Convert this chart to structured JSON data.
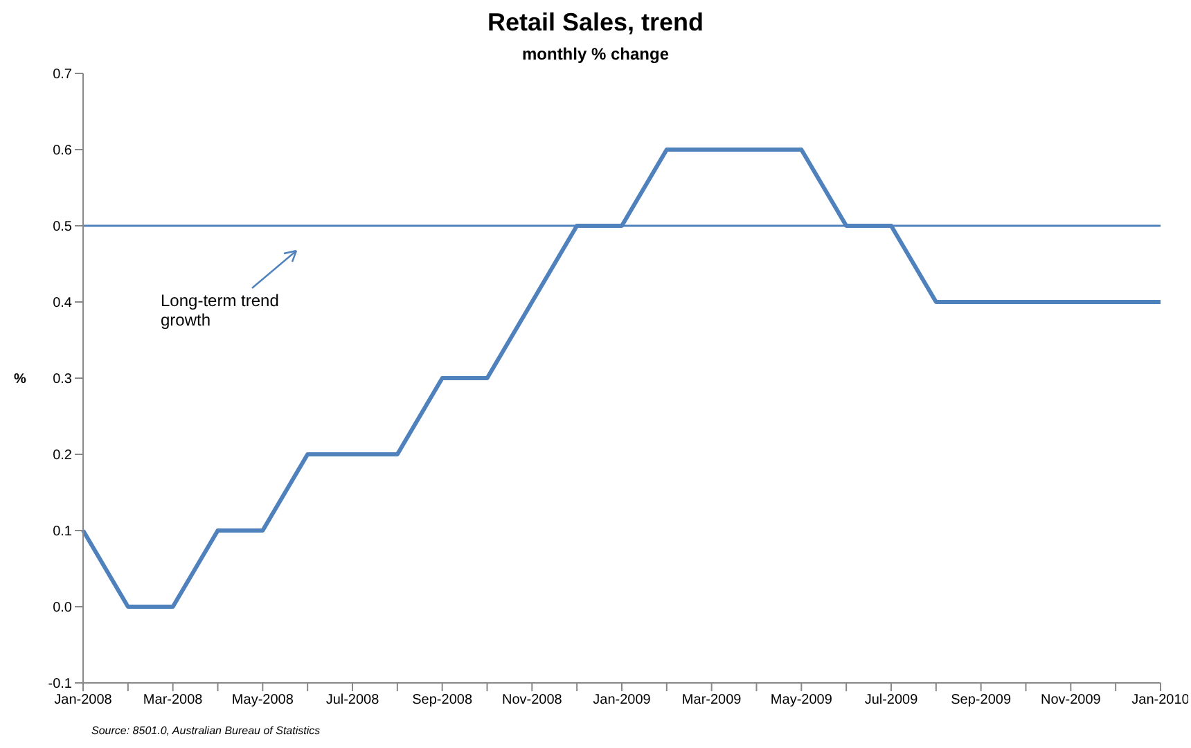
{
  "chart_data": {
    "type": "line",
    "title": "Retail Sales, trend",
    "subtitle": "monthly % change",
    "ylabel": "%",
    "categories": [
      "Jan-2008",
      null,
      "Mar-2008",
      null,
      "May-2008",
      null,
      "Jul-2008",
      null,
      "Sep-2008",
      null,
      "Nov-2008",
      null,
      "Jan-2009",
      null,
      "Mar-2009",
      null,
      "May-2009",
      null,
      "Jul-2009",
      null,
      "Sep-2009",
      null,
      "Nov-2009",
      null,
      "Jan-2010"
    ],
    "series": [
      {
        "color": "#4f81bd",
        "values": [
          0.1,
          0.0,
          0.0,
          0.1,
          0.1,
          0.2,
          0.2,
          0.2,
          0.3,
          0.3,
          0.4,
          0.5,
          0.5,
          0.6,
          0.6,
          0.6,
          0.6,
          0.5,
          0.5,
          0.4,
          0.4,
          0.4,
          0.4,
          0.4,
          0.4
        ]
      }
    ],
    "ylim": [
      -0.1,
      0.7
    ],
    "yticks": [
      -0.1,
      {
        "value": 0,
        "label": "0.0"
      },
      0.1,
      0.2,
      0.3,
      0.4,
      0.5,
      0.6,
      0.7
    ],
    "ref_lines": [
      {
        "axis": "y",
        "value": 0.5,
        "color": "#4f81bd"
      }
    ],
    "annotations": [
      "Long-term trend growth",
      "Source: 8501.0, Australian Bureau of Statistics"
    ],
    "grid": false,
    "legend": false,
    "marker": "none",
    "line_style": "solid"
  }
}
